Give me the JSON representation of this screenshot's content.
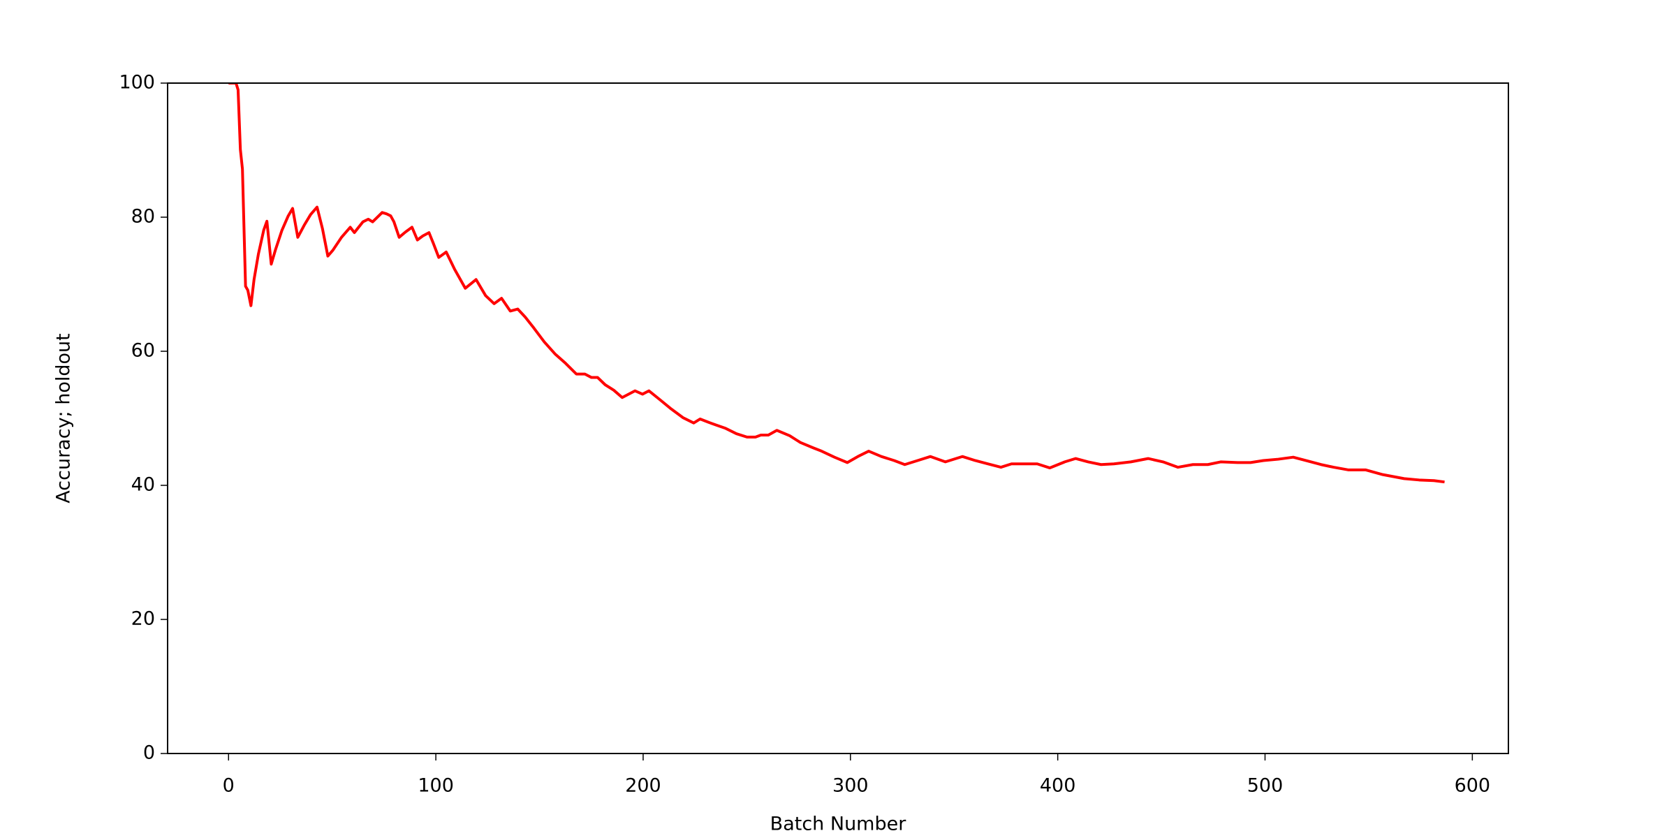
{
  "chart_data": {
    "type": "line",
    "x_label": "Batch Number",
    "y_label": "Accuracy; holdout",
    "xlim": [
      -29.4,
      617.4
    ],
    "ylim": [
      0,
      100
    ],
    "xticks": [
      0,
      100,
      200,
      300,
      400,
      500,
      600
    ],
    "yticks": [
      0,
      20,
      40,
      60,
      80,
      100
    ],
    "grid": false,
    "series": [
      {
        "name": "holdout",
        "color": "#ff0000",
        "x": [
          0,
          3.6,
          4.6,
          5.7,
          6.7,
          8.2,
          9.3,
          10.8,
          12.3,
          14.4,
          17,
          18.5,
          20.6,
          22.6,
          25.7,
          28.8,
          30.9,
          33.4,
          36.5,
          39.6,
          42.7,
          45.3,
          47.9,
          50.4,
          54.5,
          58.7,
          60.7,
          64.8,
          67.4,
          69.5,
          74.1,
          76.2,
          78.2,
          79.8,
          82.3,
          85.4,
          88.5,
          91.1,
          93.7,
          96.7,
          98.8,
          101.4,
          105,
          109.1,
          114.2,
          119.4,
          124,
          128.1,
          131.7,
          135.9,
          139.5,
          143.1,
          147.2,
          152.3,
          157.5,
          162.6,
          167.8,
          171.9,
          175,
          178,
          181.7,
          185.8,
          189.9,
          196.1,
          199.7,
          202.8,
          208,
          213.1,
          219.2,
          224.4,
          227.5,
          231.6,
          235.2,
          239.8,
          245,
          250.1,
          254.2,
          256.8,
          260.4,
          264.5,
          270.7,
          275.8,
          282,
          286.1,
          292.3,
          298.5,
          303.6,
          308.8,
          314.9,
          321.1,
          326.2,
          332.4,
          338.6,
          345.8,
          354,
          360.2,
          366.4,
          372.6,
          377.7,
          383.9,
          390.1,
          396.2,
          403.4,
          408.6,
          414.7,
          420.9,
          427.1,
          435.3,
          443.6,
          450.8,
          458,
          465.2,
          472.4,
          478.6,
          486.8,
          493,
          499.2,
          506.4,
          513.6,
          519.7,
          527,
          533.1,
          540.3,
          548.6,
          556.8,
          567.1,
          574.3,
          581.5,
          586.6
        ],
        "values": [
          100,
          100,
          99,
          90.1,
          87.2,
          69.7,
          69.1,
          66.8,
          70.7,
          74.5,
          78.1,
          79.4,
          73,
          75.1,
          78,
          80.2,
          81.3,
          77,
          78.8,
          80.4,
          81.5,
          78.3,
          74.2,
          75.1,
          77,
          78.5,
          77.7,
          79.3,
          79.7,
          79.3,
          80.7,
          80.5,
          80.2,
          79.3,
          77,
          77.8,
          78.5,
          76.6,
          77.2,
          77.7,
          76.1,
          74,
          74.8,
          72.2,
          69.4,
          70.7,
          68.3,
          67.1,
          67.9,
          66,
          66.3,
          65.1,
          63.5,
          61.4,
          59.6,
          58.2,
          56.6,
          56.6,
          56.1,
          56.1,
          55,
          54.2,
          53.1,
          54.1,
          53.6,
          54.1,
          52.8,
          51.5,
          50.1,
          49.3,
          49.9,
          49.4,
          49,
          48.5,
          47.7,
          47.2,
          47.2,
          47.5,
          47.5,
          48.2,
          47.4,
          46.4,
          45.6,
          45.1,
          44.2,
          43.4,
          44.3,
          45.1,
          44.3,
          43.7,
          43.1,
          43.7,
          44.3,
          43.5,
          44.3,
          43.7,
          43.2,
          42.7,
          43.2,
          43.2,
          43.2,
          42.6,
          43.5,
          44,
          43.5,
          43.1,
          43.2,
          43.5,
          44,
          43.5,
          42.7,
          43.1,
          43.1,
          43.5,
          43.4,
          43.4,
          43.7,
          43.9,
          44.2,
          43.7,
          43.1,
          42.7,
          42.3,
          42.3,
          41.6,
          41,
          40.8,
          40.7,
          40.5
        ]
      }
    ]
  }
}
